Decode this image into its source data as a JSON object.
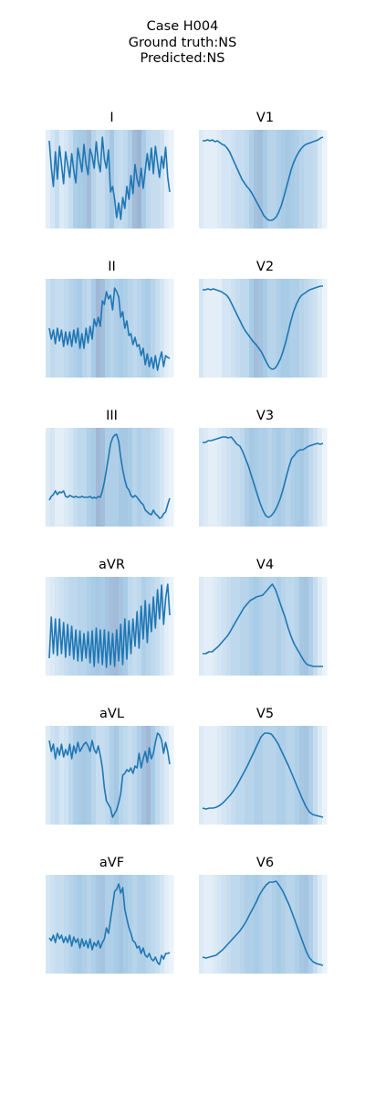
{
  "figure": {
    "title_lines": [
      "Case H004",
      "Ground truth:NS",
      "Predicted:NS"
    ]
  },
  "colors": {
    "line": "#1f77b4",
    "attention_low": "#f2f7fc",
    "attention_mid": "#a8cbe6",
    "attention_high": "#9aaacb"
  },
  "chart_data": [
    {
      "type": "line",
      "title": "I",
      "values": [
        0.92,
        0.63,
        0.42,
        0.8,
        0.5,
        0.86,
        0.66,
        0.45,
        0.8,
        0.66,
        0.52,
        0.78,
        0.6,
        0.46,
        0.84,
        0.72,
        0.58,
        0.88,
        0.66,
        0.55,
        0.83,
        0.75,
        0.62,
        0.91,
        0.69,
        0.58,
        0.96,
        0.72,
        0.62,
        0.82,
        0.36,
        0.42,
        0.28,
        0.08,
        0.24,
        0.06,
        0.3,
        0.18,
        0.42,
        0.28,
        0.54,
        0.34,
        0.66,
        0.5,
        0.42,
        0.62,
        0.4,
        0.6,
        0.78,
        0.6,
        0.84,
        0.56,
        0.86,
        0.68,
        0.52,
        0.75,
        0.62,
        0.85,
        0.52,
        0.36
      ],
      "attention": [
        0.1,
        0.2,
        0.3,
        0.15,
        0.2,
        0.3,
        0.45,
        0.5,
        0.55,
        0.7,
        0.4,
        0.3,
        0.3,
        0.4,
        0.55,
        0.35,
        0.3,
        0.35,
        0.45,
        0.75,
        0.85,
        0.5,
        0.35,
        0.3,
        0.3,
        0.25,
        0.1,
        0.05
      ]
    },
    {
      "type": "line",
      "title": "II",
      "values": [
        0.5,
        0.38,
        0.48,
        0.33,
        0.5,
        0.36,
        0.48,
        0.3,
        0.46,
        0.32,
        0.46,
        0.3,
        0.48,
        0.34,
        0.5,
        0.28,
        0.44,
        0.28,
        0.5,
        0.34,
        0.52,
        0.38,
        0.6,
        0.52,
        0.62,
        0.52,
        0.8,
        0.76,
        0.9,
        0.82,
        0.86,
        0.7,
        0.94,
        0.9,
        0.84,
        0.62,
        0.68,
        0.5,
        0.58,
        0.42,
        0.44,
        0.32,
        0.4,
        0.3,
        0.32,
        0.2,
        0.28,
        0.1,
        0.22,
        0.08,
        0.18,
        0.06,
        0.2,
        0.04,
        0.15,
        0.24,
        0.08,
        0.2,
        0.18,
        0.17
      ],
      "attention": [
        0.25,
        0.35,
        0.3,
        0.3,
        0.35,
        0.4,
        0.45,
        0.5,
        0.4,
        0.35,
        0.5,
        0.8,
        0.7,
        0.45,
        0.4,
        0.45,
        0.5,
        0.45,
        0.4,
        0.35,
        0.4,
        0.45,
        0.5,
        0.4,
        0.3,
        0.2,
        0.1,
        0.05
      ]
    },
    {
      "type": "line",
      "title": "III",
      "values": [
        0.25,
        0.29,
        0.31,
        0.35,
        0.31,
        0.34,
        0.33,
        0.35,
        0.29,
        0.28,
        0.3,
        0.29,
        0.28,
        0.29,
        0.28,
        0.28,
        0.29,
        0.28,
        0.28,
        0.28,
        0.29,
        0.27,
        0.28,
        0.27,
        0.29,
        0.28,
        0.35,
        0.45,
        0.58,
        0.72,
        0.86,
        0.93,
        0.96,
        0.97,
        0.89,
        0.72,
        0.58,
        0.47,
        0.39,
        0.36,
        0.3,
        0.28,
        0.3,
        0.28,
        0.25,
        0.22,
        0.2,
        0.14,
        0.12,
        0.1,
        0.09,
        0.14,
        0.1,
        0.08,
        0.05,
        0.06,
        0.1,
        0.12,
        0.2,
        0.27
      ],
      "attention": [
        0.15,
        0.2,
        0.1,
        0.1,
        0.15,
        0.2,
        0.3,
        0.35,
        0.35,
        0.45,
        0.5,
        0.8,
        0.7,
        0.45,
        0.45,
        0.45,
        0.55,
        0.55,
        0.5,
        0.4,
        0.45,
        0.4,
        0.4,
        0.35,
        0.3,
        0.2,
        0.1,
        0.05
      ]
    },
    {
      "type": "line",
      "title": "aVR",
      "values": [
        0.15,
        0.6,
        0.2,
        0.58,
        0.18,
        0.58,
        0.2,
        0.54,
        0.16,
        0.52,
        0.18,
        0.5,
        0.14,
        0.46,
        0.12,
        0.45,
        0.12,
        0.42,
        0.15,
        0.44,
        0.1,
        0.45,
        0.06,
        0.48,
        0.1,
        0.46,
        0.08,
        0.46,
        0.05,
        0.44,
        0.08,
        0.42,
        0.06,
        0.46,
        0.12,
        0.52,
        0.08,
        0.58,
        0.14,
        0.56,
        0.2,
        0.58,
        0.28,
        0.66,
        0.26,
        0.72,
        0.36,
        0.78,
        0.32,
        0.74,
        0.44,
        0.82,
        0.48,
        0.9,
        0.58,
        0.95,
        0.52,
        0.8,
        0.96,
        0.62
      ],
      "attention": [
        0.1,
        0.15,
        0.2,
        0.25,
        0.3,
        0.35,
        0.35,
        0.4,
        0.4,
        0.45,
        0.5,
        0.55,
        0.5,
        0.6,
        0.7,
        0.75,
        0.6,
        0.5,
        0.35,
        0.3,
        0.35,
        0.45,
        0.4,
        0.35,
        0.3,
        0.2,
        0.1,
        0.05
      ]
    },
    {
      "type": "line",
      "title": "aVL",
      "values": [
        0.88,
        0.76,
        0.84,
        0.68,
        0.8,
        0.72,
        0.84,
        0.7,
        0.78,
        0.72,
        0.84,
        0.68,
        0.82,
        0.74,
        0.86,
        0.76,
        0.8,
        0.84,
        0.86,
        0.82,
        0.76,
        0.88,
        0.78,
        0.74,
        0.82,
        0.72,
        0.58,
        0.36,
        0.22,
        0.18,
        0.14,
        0.04,
        0.08,
        0.12,
        0.2,
        0.3,
        0.5,
        0.52,
        0.56,
        0.54,
        0.58,
        0.52,
        0.6,
        0.58,
        0.74,
        0.58,
        0.68,
        0.76,
        0.64,
        0.8,
        0.68,
        0.74,
        0.86,
        0.96,
        0.94,
        0.88,
        0.74,
        0.86,
        0.76,
        0.62
      ],
      "attention": [
        0.15,
        0.25,
        0.3,
        0.2,
        0.25,
        0.35,
        0.45,
        0.5,
        0.55,
        0.5,
        0.4,
        0.3,
        0.3,
        0.35,
        0.45,
        0.55,
        0.4,
        0.35,
        0.3,
        0.35,
        0.45,
        0.65,
        0.8,
        0.5,
        0.35,
        0.25,
        0.15,
        0.05
      ]
    },
    {
      "type": "line",
      "title": "aVF",
      "values": [
        0.35,
        0.32,
        0.38,
        0.3,
        0.4,
        0.34,
        0.38,
        0.3,
        0.36,
        0.3,
        0.38,
        0.26,
        0.36,
        0.3,
        0.34,
        0.24,
        0.34,
        0.26,
        0.32,
        0.24,
        0.34,
        0.22,
        0.3,
        0.26,
        0.32,
        0.24,
        0.3,
        0.34,
        0.46,
        0.4,
        0.55,
        0.7,
        0.86,
        0.88,
        0.94,
        0.84,
        0.9,
        0.66,
        0.56,
        0.46,
        0.4,
        0.32,
        0.3,
        0.24,
        0.26,
        0.18,
        0.24,
        0.16,
        0.14,
        0.18,
        0.12,
        0.1,
        0.14,
        0.08,
        0.06,
        0.16,
        0.12,
        0.18,
        0.18,
        0.19
      ],
      "attention": [
        0.2,
        0.25,
        0.3,
        0.3,
        0.35,
        0.4,
        0.45,
        0.5,
        0.45,
        0.4,
        0.45,
        0.55,
        0.6,
        0.45,
        0.45,
        0.5,
        0.6,
        0.5,
        0.45,
        0.4,
        0.45,
        0.45,
        0.4,
        0.35,
        0.3,
        0.2,
        0.1,
        0.05
      ]
    },
    {
      "type": "line",
      "title": "V1",
      "values": [
        0.92,
        0.92,
        0.93,
        0.92,
        0.93,
        0.91,
        0.92,
        0.9,
        0.88,
        0.87,
        0.84,
        0.8,
        0.74,
        0.68,
        0.62,
        0.56,
        0.5,
        0.46,
        0.42,
        0.39,
        0.35,
        0.3,
        0.25,
        0.2,
        0.15,
        0.1,
        0.07,
        0.05,
        0.05,
        0.06,
        0.09,
        0.14,
        0.21,
        0.3,
        0.4,
        0.5,
        0.6,
        0.68,
        0.74,
        0.79,
        0.83,
        0.86,
        0.88,
        0.89,
        0.9,
        0.91,
        0.92,
        0.93,
        0.95,
        0.96
      ],
      "attention": [
        0.15,
        0.1,
        0.1,
        0.1,
        0.15,
        0.2,
        0.2,
        0.25,
        0.3,
        0.3,
        0.35,
        0.45,
        0.65,
        0.7,
        0.5,
        0.4,
        0.4,
        0.45,
        0.5,
        0.55,
        0.5,
        0.45,
        0.4,
        0.35,
        0.35,
        0.3,
        0.15,
        0.05
      ]
    },
    {
      "type": "line",
      "title": "V2",
      "values": [
        0.92,
        0.92,
        0.93,
        0.92,
        0.93,
        0.92,
        0.91,
        0.9,
        0.88,
        0.86,
        0.82,
        0.76,
        0.7,
        0.64,
        0.58,
        0.52,
        0.47,
        0.43,
        0.39,
        0.35,
        0.32,
        0.28,
        0.24,
        0.18,
        0.12,
        0.07,
        0.05,
        0.06,
        0.1,
        0.16,
        0.24,
        0.34,
        0.46,
        0.58,
        0.68,
        0.76,
        0.82,
        0.86,
        0.88,
        0.9,
        0.92,
        0.93,
        0.94,
        0.95,
        0.96,
        0.96
      ],
      "attention": [
        0.2,
        0.1,
        0.1,
        0.1,
        0.1,
        0.2,
        0.2,
        0.25,
        0.3,
        0.35,
        0.35,
        0.5,
        0.7,
        0.65,
        0.5,
        0.4,
        0.4,
        0.45,
        0.5,
        0.5,
        0.45,
        0.45,
        0.4,
        0.35,
        0.3,
        0.25,
        0.15,
        0.05
      ]
    },
    {
      "type": "line",
      "title": "V3",
      "values": [
        0.88,
        0.88,
        0.9,
        0.9,
        0.91,
        0.92,
        0.93,
        0.94,
        0.94,
        0.93,
        0.94,
        0.9,
        0.86,
        0.84,
        0.78,
        0.7,
        0.62,
        0.52,
        0.42,
        0.32,
        0.22,
        0.14,
        0.08,
        0.06,
        0.08,
        0.12,
        0.18,
        0.26,
        0.36,
        0.48,
        0.6,
        0.7,
        0.74,
        0.78,
        0.8,
        0.8,
        0.82,
        0.84,
        0.85,
        0.86,
        0.87,
        0.86,
        0.87
      ],
      "attention": [
        0.2,
        0.15,
        0.1,
        0.1,
        0.15,
        0.2,
        0.25,
        0.3,
        0.3,
        0.35,
        0.45,
        0.55,
        0.5,
        0.45,
        0.45,
        0.4,
        0.45,
        0.5,
        0.45,
        0.4,
        0.45,
        0.5,
        0.55,
        0.45,
        0.35,
        0.25,
        0.15,
        0.05
      ]
    },
    {
      "type": "line",
      "title": "V4",
      "values": [
        0.2,
        0.2,
        0.22,
        0.22,
        0.25,
        0.28,
        0.32,
        0.36,
        0.4,
        0.46,
        0.52,
        0.58,
        0.64,
        0.7,
        0.74,
        0.78,
        0.8,
        0.82,
        0.83,
        0.84,
        0.88,
        0.92,
        0.96,
        0.9,
        0.8,
        0.7,
        0.6,
        0.48,
        0.38,
        0.3,
        0.24,
        0.18,
        0.12,
        0.08,
        0.07,
        0.06,
        0.06,
        0.06,
        0.06
      ],
      "attention": [
        0.15,
        0.1,
        0.1,
        0.15,
        0.2,
        0.25,
        0.3,
        0.35,
        0.35,
        0.4,
        0.4,
        0.45,
        0.5,
        0.45,
        0.4,
        0.4,
        0.4,
        0.45,
        0.4,
        0.35,
        0.35,
        0.4,
        0.55,
        0.6,
        0.45,
        0.3,
        0.15,
        0.05
      ]
    },
    {
      "type": "line",
      "title": "V5",
      "values": [
        0.14,
        0.13,
        0.14,
        0.14,
        0.15,
        0.17,
        0.2,
        0.24,
        0.28,
        0.33,
        0.39,
        0.46,
        0.53,
        0.6,
        0.68,
        0.76,
        0.84,
        0.92,
        0.96,
        0.96,
        0.95,
        0.9,
        0.84,
        0.76,
        0.68,
        0.6,
        0.51,
        0.42,
        0.33,
        0.24,
        0.16,
        0.1,
        0.07,
        0.06,
        0.05,
        0.04
      ],
      "attention": [
        0.15,
        0.1,
        0.1,
        0.1,
        0.15,
        0.2,
        0.25,
        0.3,
        0.35,
        0.35,
        0.4,
        0.4,
        0.45,
        0.45,
        0.4,
        0.4,
        0.4,
        0.45,
        0.45,
        0.4,
        0.4,
        0.45,
        0.55,
        0.6,
        0.45,
        0.3,
        0.15,
        0.05
      ]
    },
    {
      "type": "line",
      "title": "V6",
      "values": [
        0.14,
        0.13,
        0.14,
        0.15,
        0.16,
        0.19,
        0.22,
        0.26,
        0.3,
        0.34,
        0.38,
        0.42,
        0.47,
        0.53,
        0.6,
        0.67,
        0.74,
        0.82,
        0.88,
        0.93,
        0.96,
        0.96,
        0.97,
        0.92,
        0.86,
        0.78,
        0.7,
        0.6,
        0.5,
        0.4,
        0.3,
        0.2,
        0.13,
        0.09,
        0.07,
        0.06,
        0.05
      ],
      "attention": [
        0.15,
        0.1,
        0.1,
        0.15,
        0.2,
        0.25,
        0.3,
        0.35,
        0.35,
        0.4,
        0.45,
        0.45,
        0.5,
        0.45,
        0.4,
        0.4,
        0.45,
        0.5,
        0.45,
        0.4,
        0.4,
        0.45,
        0.55,
        0.6,
        0.45,
        0.3,
        0.15,
        0.05
      ]
    }
  ]
}
